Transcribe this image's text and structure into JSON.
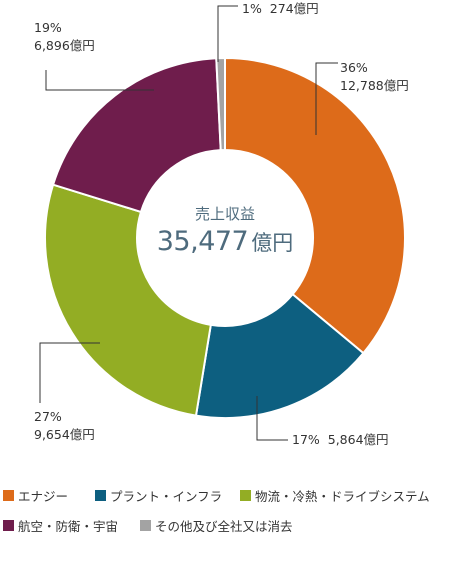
{
  "chart_data": {
    "type": "donut",
    "center": {
      "title": "売上収益",
      "total": "35,477",
      "unit": "億円"
    },
    "slices": [
      {
        "name": "エナジー",
        "percent_label": "36%",
        "value_label": "12,788億円",
        "value": 12788,
        "color": "#dd6b1a"
      },
      {
        "name": "プラント・インフラ",
        "percent_label": "17%",
        "value_label": "5,864億円",
        "value": 5864,
        "color": "#0d5f80"
      },
      {
        "name": "物流・冷熱・ドライブシステム",
        "percent_label": "27%",
        "value_label": "9,654億円",
        "value": 9654,
        "color": "#93ad24"
      },
      {
        "name": "航空・防衛・宇宙",
        "percent_label": "19%",
        "value_label": "6,896億円",
        "value": 6896,
        "color": "#6f1d4c"
      },
      {
        "name": "その他及び全社又は消去",
        "percent_label": "1%",
        "value_label": "274億円",
        "value": 274,
        "color": "#a3a3a3"
      }
    ]
  }
}
